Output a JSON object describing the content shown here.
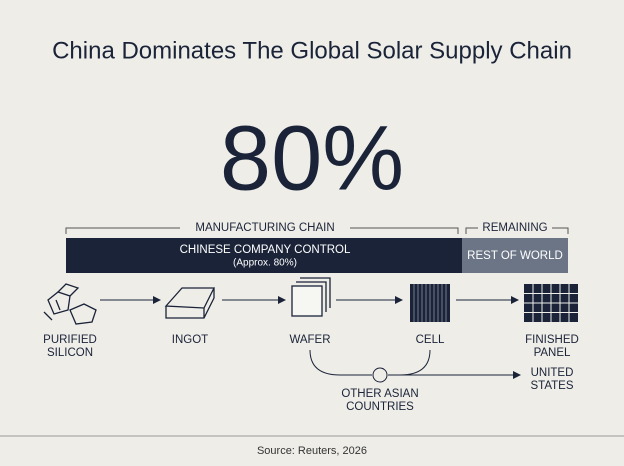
{
  "header": {
    "title": "China Dominates The Global Solar Supply Chain"
  },
  "headline": "80%",
  "chain": {
    "left_label": "MANUFACTURING CHAIN",
    "right_label": "REMAINING"
  },
  "bar": {
    "china_label": "CHINESE COMPANY CONTROL",
    "china_note": "(Approx. 80%)",
    "rest_label": "REST OF WORLD"
  },
  "steps": [
    {
      "lines": [
        "PURIFIED",
        "SILICON"
      ]
    },
    {
      "lines": [
        "INGOT"
      ]
    },
    {
      "lines": [
        "WAFER"
      ]
    },
    {
      "lines": [
        "CELL"
      ]
    },
    {
      "lines": [
        "FINISHED",
        "PANEL"
      ]
    }
  ],
  "branch": {
    "origin": [
      "OTHER ASIAN",
      "COUNTRIES"
    ],
    "destination": [
      "UNITED",
      "STATES"
    ]
  },
  "footer": {
    "source": "Source: Reuters, 2026"
  }
}
